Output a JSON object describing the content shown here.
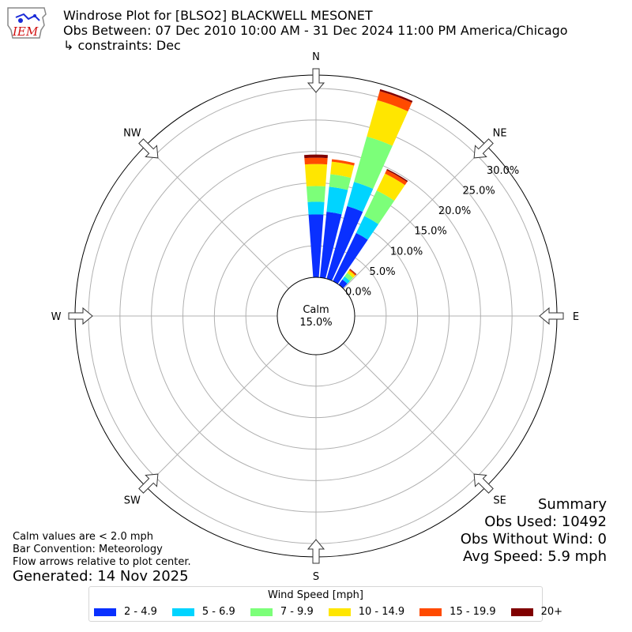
{
  "header": {
    "logo_text": "IEM",
    "line1": "Windrose Plot for [BLSO2] BLACKWELL MESONET",
    "line2": "Obs Between: 07 Dec 2010 10:00 AM - 31 Dec 2024 11:00 PM America/Chicago",
    "line3": "↳ constraints: Dec"
  },
  "notes": {
    "calm_note": "Calm values are < 2.0 mph",
    "bar_convention": "Bar Convention: Meteorology",
    "flow_arrows": "Flow arrows relative to plot center.",
    "generated": "Generated: 14 Nov 2025"
  },
  "summary": {
    "title": "Summary",
    "obs_used": "Obs Used: 10492",
    "obs_without_wind": "Obs Without Wind: 0",
    "avg_speed": "Avg Speed: 5.9 mph"
  },
  "chart_data": {
    "type": "windrose",
    "calm_label": "Calm",
    "calm_percent": "15.0%",
    "directions": [
      "N",
      "NE",
      "E",
      "SE",
      "S",
      "SW",
      "W",
      "NW"
    ],
    "radial_ticks": [
      "0.0%",
      "5.0%",
      "10.0%",
      "15.0%",
      "20.0%",
      "25.0%",
      "30.0%"
    ],
    "radial_max": 30,
    "legend_title": "Wind Speed [mph]",
    "speed_bins": [
      {
        "label": "2 - 4.9",
        "color": "#0a30ff"
      },
      {
        "label": "5 - 6.9",
        "color": "#00d4ff"
      },
      {
        "label": "7 - 9.9",
        "color": "#7cff79"
      },
      {
        "label": "10 - 14.9",
        "color": "#ffe600"
      },
      {
        "label": "15 - 19.9",
        "color": "#ff4a00"
      },
      {
        "label": "20+",
        "color": "#800000"
      }
    ],
    "bars": [
      {
        "direction_deg": 0,
        "values": [
          10.0,
          2.0,
          2.5,
          3.5,
          1.0,
          0.5
        ]
      },
      {
        "direction_deg": 10,
        "values": [
          10.5,
          4.0,
          2.0,
          2.0,
          0.4,
          0.0
        ]
      },
      {
        "direction_deg": 20,
        "values": [
          12.0,
          4.0,
          7.5,
          6.0,
          1.5,
          0.3
        ]
      },
      {
        "direction_deg": 30,
        "values": [
          8.5,
          3.0,
          4.5,
          3.0,
          0.6,
          0.2
        ]
      },
      {
        "direction_deg": 40,
        "values": [
          1.0,
          0.6,
          0.7,
          0.5,
          0.2,
          0.1
        ]
      }
    ]
  }
}
